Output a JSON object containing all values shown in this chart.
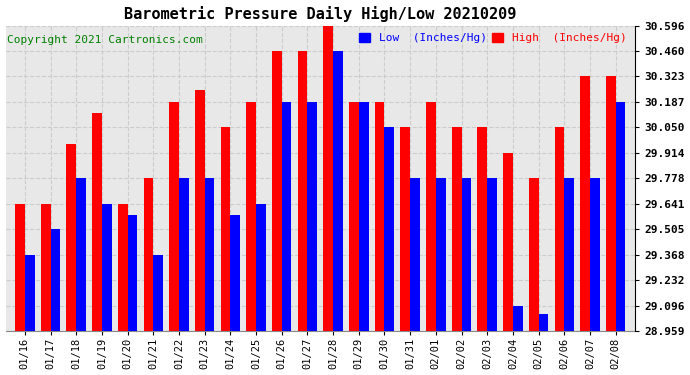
{
  "title": "Barometric Pressure Daily High/Low 20210209",
  "copyright": "Copyright 2021 Cartronics.com",
  "ylabel_right_ticks": [
    28.959,
    29.096,
    29.232,
    29.368,
    29.505,
    29.641,
    29.778,
    29.914,
    30.05,
    30.187,
    30.323,
    30.46,
    30.596
  ],
  "ylim": [
    28.959,
    30.596
  ],
  "dates": [
    "01/16",
    "01/17",
    "01/18",
    "01/19",
    "01/20",
    "01/21",
    "01/22",
    "01/23",
    "01/24",
    "01/25",
    "01/26",
    "01/27",
    "01/28",
    "01/29",
    "01/30",
    "01/31",
    "02/01",
    "02/02",
    "02/03",
    "02/04",
    "02/05",
    "02/06",
    "02/07",
    "02/08"
  ],
  "high_values": [
    29.641,
    29.641,
    29.96,
    30.13,
    29.641,
    29.778,
    30.187,
    30.25,
    30.05,
    30.187,
    30.46,
    30.46,
    30.596,
    30.187,
    30.187,
    30.05,
    30.187,
    30.05,
    30.05,
    29.914,
    29.778,
    30.05,
    30.323,
    30.323
  ],
  "low_values": [
    29.368,
    29.505,
    29.778,
    29.641,
    29.58,
    29.368,
    29.778,
    29.778,
    29.58,
    29.641,
    30.187,
    30.187,
    30.46,
    30.187,
    30.05,
    29.778,
    29.778,
    29.778,
    29.778,
    29.096,
    29.05,
    29.778,
    29.778,
    30.187
  ],
  "high_color": "#ff0000",
  "low_color": "#0000ff",
  "bg_color": "#ffffff",
  "plot_bg_color": "#e8e8e8",
  "title_fontsize": 11,
  "copyright_fontsize": 8,
  "bar_width": 0.38,
  "grid_color": "#cccccc",
  "legend_low_label": "Low  (Inches/Hg)",
  "legend_high_label": "High  (Inches/Hg)"
}
